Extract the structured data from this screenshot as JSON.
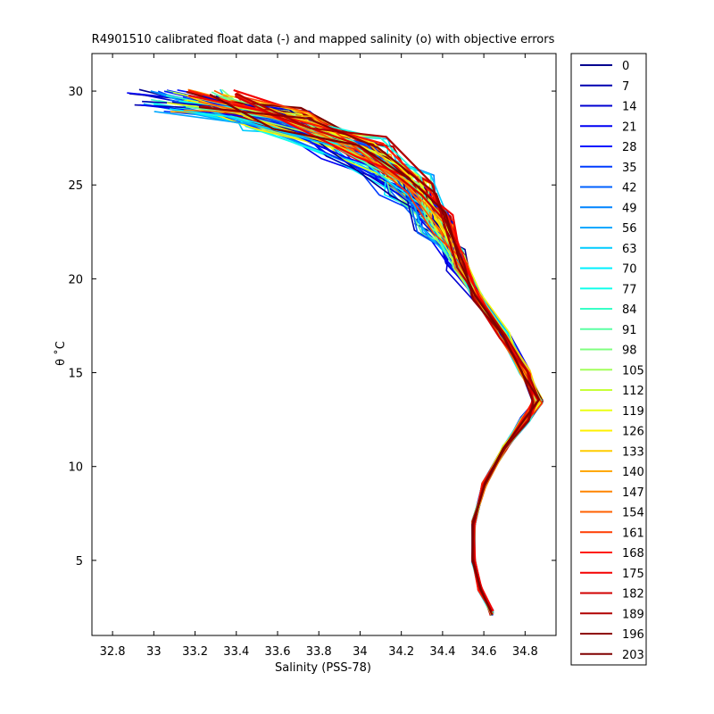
{
  "chart_data": {
    "type": "line",
    "title": "R4901510 calibrated float data (-) and mapped salinity (o) with objective errors",
    "xlabel": "Salinity (PSS-78)",
    "ylabel": "θ ˚C",
    "xlim": [
      32.7,
      34.95
    ],
    "ylim": [
      1.0,
      32.0
    ],
    "xticks": [
      "32.8",
      "33",
      "33.2",
      "33.4",
      "33.6",
      "33.8",
      "34",
      "34.2",
      "34.4",
      "34.6",
      "34.8"
    ],
    "yticks": [
      "5",
      "10",
      "15",
      "20",
      "25",
      "30"
    ],
    "grid": false,
    "legend_position": "outside-right",
    "colormap": "jet",
    "series": [
      {
        "name": "0",
        "color": "#00008f"
      },
      {
        "name": "7",
        "color": "#0000b0"
      },
      {
        "name": "14",
        "color": "#0000d2"
      },
      {
        "name": "21",
        "color": "#0000f4"
      },
      {
        "name": "28",
        "color": "#0018ff"
      },
      {
        "name": "35",
        "color": "#003cff"
      },
      {
        "name": "42",
        "color": "#0060ff"
      },
      {
        "name": "49",
        "color": "#0084ff"
      },
      {
        "name": "56",
        "color": "#00a8ff"
      },
      {
        "name": "63",
        "color": "#00ccff"
      },
      {
        "name": "70",
        "color": "#00f0ff"
      },
      {
        "name": "77",
        "color": "#14ffeb"
      },
      {
        "name": "84",
        "color": "#38ffc7"
      },
      {
        "name": "91",
        "color": "#5cffa3"
      },
      {
        "name": "98",
        "color": "#80ff80"
      },
      {
        "name": "105",
        "color": "#a3ff5c"
      },
      {
        "name": "112",
        "color": "#c7ff38"
      },
      {
        "name": "119",
        "color": "#ebff14"
      },
      {
        "name": "126",
        "color": "#fff000"
      },
      {
        "name": "133",
        "color": "#ffcc00"
      },
      {
        "name": "140",
        "color": "#ffa800"
      },
      {
        "name": "147",
        "color": "#ff8400"
      },
      {
        "name": "154",
        "color": "#ff6000"
      },
      {
        "name": "161",
        "color": "#ff3c00"
      },
      {
        "name": "168",
        "color": "#ff1800"
      },
      {
        "name": "175",
        "color": "#f40000"
      },
      {
        "name": "182",
        "color": "#d20000"
      },
      {
        "name": "189",
        "color": "#b00000"
      },
      {
        "name": "196",
        "color": "#8f0000"
      },
      {
        "name": "203",
        "color": "#800000"
      }
    ],
    "profile_shape": {
      "theta": [
        2.2,
        3.5,
        5,
        7,
        9,
        11,
        12.5,
        13.5,
        15,
        17,
        19,
        21,
        23,
        25,
        27,
        28.5,
        29.5
      ],
      "salinity": [
        34.64,
        34.58,
        34.55,
        34.55,
        34.6,
        34.7,
        34.8,
        34.86,
        34.8,
        34.7,
        34.57,
        34.48,
        34.38,
        34.25,
        34.0,
        33.6,
        33.2
      ]
    }
  }
}
